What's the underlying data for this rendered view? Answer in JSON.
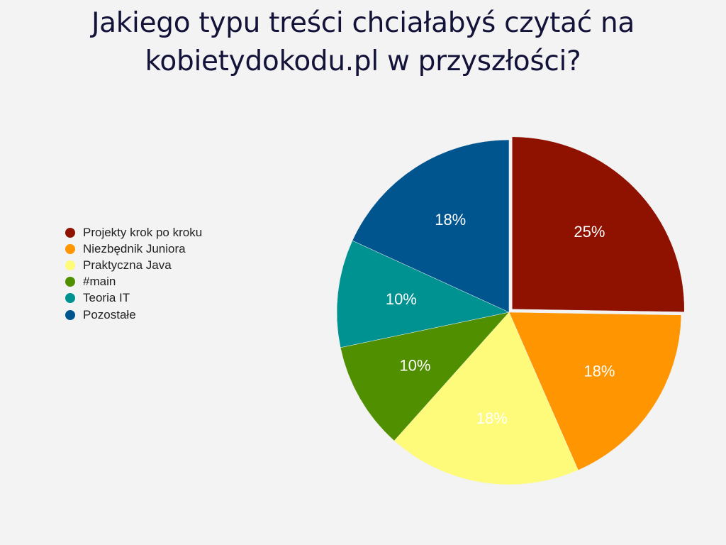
{
  "title_lines": [
    "Jakiego typu treści chciałabyś czytać na",
    "kobietydokodu.pl w przyszłości?"
  ],
  "chart_data": {
    "type": "pie",
    "title": "Jakiego typu treści chciałabyś czytać na kobietydokodu.pl w przyszłości?",
    "categories": [
      "Projekty krok po kroku",
      "Niezbędnik Juniora",
      "Praktyczna Java",
      "#main",
      "Teoria IT",
      "Pozostałe"
    ],
    "values": [
      25,
      18,
      18,
      10,
      10,
      18
    ],
    "labels": [
      "25%",
      "18%",
      "18%",
      "10%",
      "10%",
      "18%"
    ],
    "colors": [
      "#8f1100",
      "#ff9500",
      "#fffb7a",
      "#4f8f00",
      "#009290",
      "#00558f"
    ],
    "exploded": [
      "Projekty krok po kroku"
    ],
    "legend_position": "left"
  }
}
